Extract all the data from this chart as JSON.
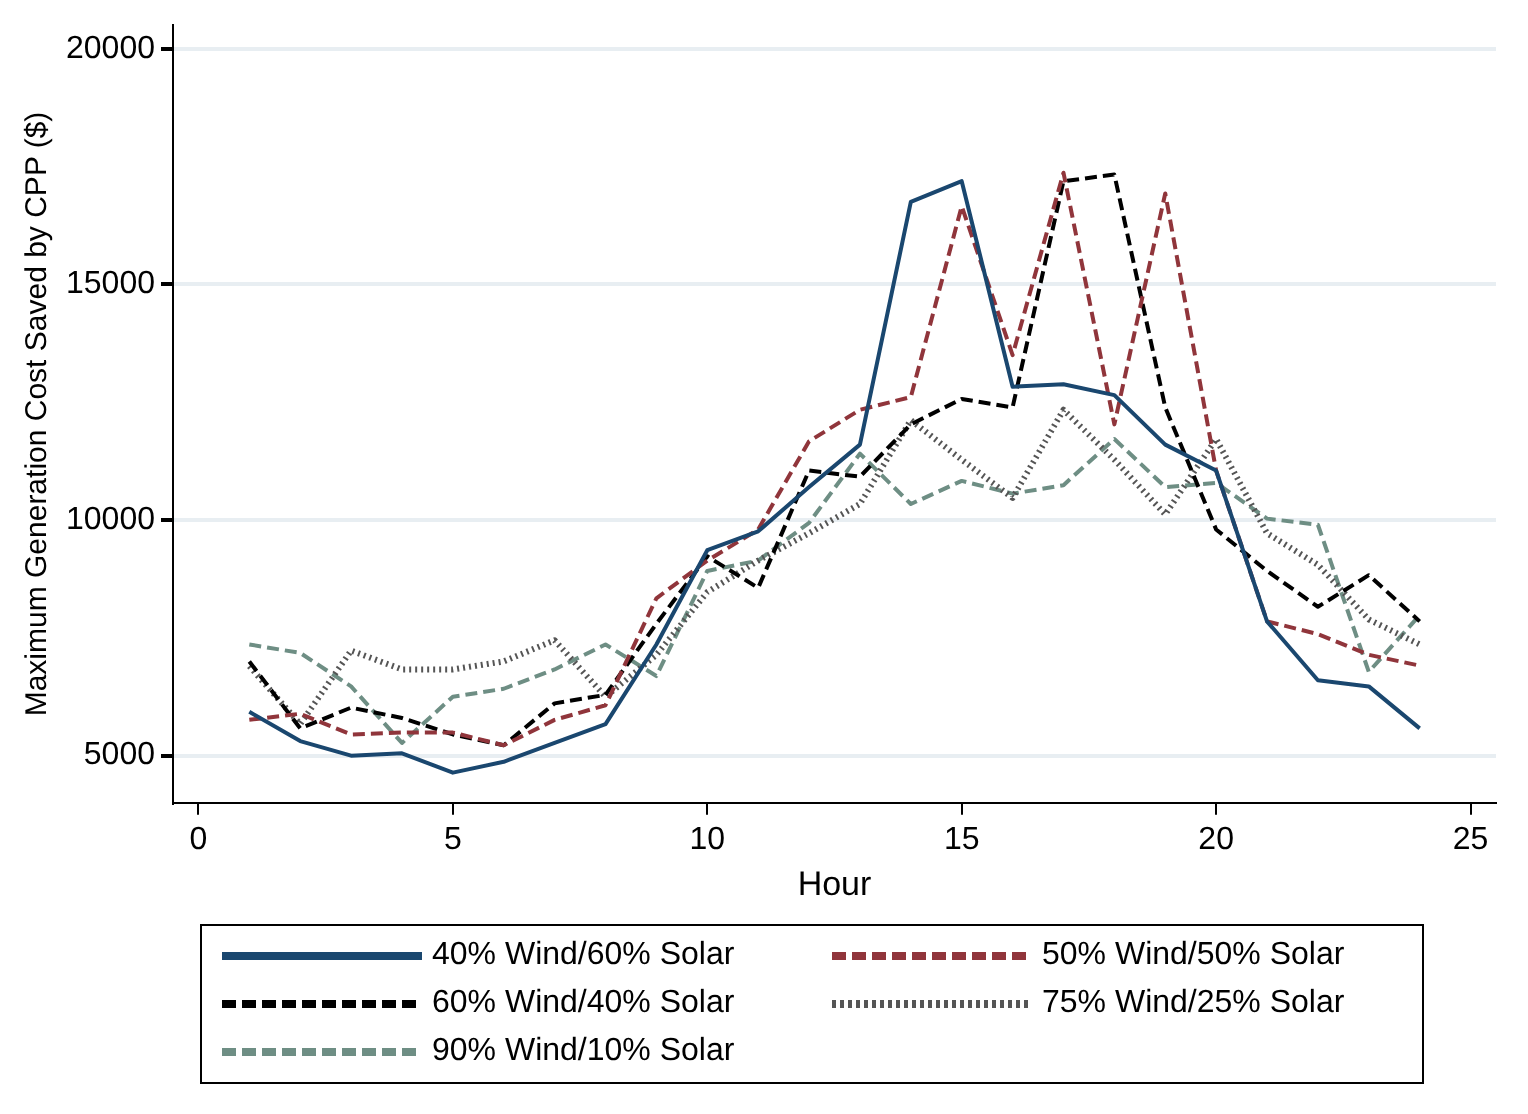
{
  "chart_data": {
    "type": "line",
    "xlabel": "Hour",
    "ylabel": "Maximum Generation Cost Saved by CPP ($)",
    "x": [
      1,
      2,
      3,
      4,
      5,
      6,
      7,
      8,
      9,
      10,
      11,
      12,
      13,
      14,
      15,
      16,
      17,
      18,
      19,
      20,
      21,
      22,
      23,
      24
    ],
    "xlim": [
      -0.5,
      25.5
    ],
    "xticks": [
      0,
      5,
      10,
      15,
      20,
      25
    ],
    "ylim": [
      4000,
      20500
    ],
    "yticks": [
      5000,
      10000,
      15000,
      20000
    ],
    "grid": "y",
    "legend": "bottom",
    "marker": "none",
    "series": [
      {
        "name": "40% Wind/60% Solar",
        "color": "#1a476f",
        "line_style": "solid",
        "values": [
          5930,
          5310,
          5000,
          5050,
          4640,
          4870,
          5270,
          5670,
          7360,
          9360,
          9760,
          10700,
          11600,
          16750,
          17190,
          12830,
          12880,
          12650,
          11600,
          11050,
          7850,
          6600,
          6470,
          5580
        ]
      },
      {
        "name": "50% Wind/50% Solar",
        "color": "#90353b",
        "line_style": "dashed",
        "values": [
          5760,
          5890,
          5450,
          5490,
          5490,
          5220,
          5760,
          6070,
          8340,
          9140,
          9800,
          11670,
          12340,
          12610,
          16660,
          13500,
          17370,
          12030,
          16930,
          11050,
          7850,
          7580,
          7140,
          6910
        ]
      },
      {
        "name": "60% Wind/40% Solar",
        "color": "#000000",
        "line_style": "dashed",
        "values": [
          7000,
          5580,
          6020,
          5800,
          5450,
          5220,
          6110,
          6290,
          7800,
          9230,
          8560,
          11050,
          10920,
          12030,
          12570,
          12390,
          17190,
          17330,
          12390,
          9800,
          8920,
          8160,
          8830,
          7850
        ]
      },
      {
        "name": "75% Wind/25% Solar",
        "color": "#555555",
        "line_style": "dotted",
        "values": [
          6900,
          5670,
          7230,
          6830,
          6830,
          7000,
          7450,
          6250,
          7140,
          8470,
          9140,
          9720,
          10340,
          12120,
          11280,
          10470,
          12340,
          11280,
          10120,
          11720,
          9720,
          9050,
          7890,
          7360
        ]
      },
      {
        "name": "90% Wind/10% Solar",
        "color": "#6e8e84",
        "line_style": "dashed",
        "values": [
          7360,
          7180,
          6470,
          5270,
          6250,
          6420,
          6830,
          7360,
          6690,
          8920,
          9140,
          9940,
          11410,
          10340,
          10830,
          10560,
          10740,
          11720,
          10700,
          10790,
          10030,
          9900,
          6780,
          7980
        ]
      }
    ]
  }
}
